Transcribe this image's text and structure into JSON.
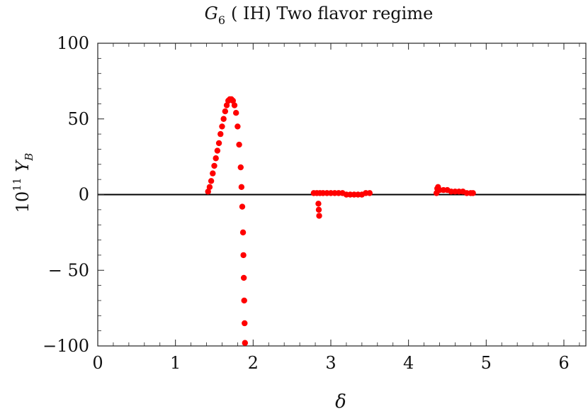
{
  "chart_data": {
    "type": "scatter",
    "title": {
      "symbol": "G",
      "subscript": "6",
      "text": "( IH) Two flavor regime"
    },
    "xlabel": "δ",
    "ylabel": {
      "prefix": "10",
      "exponent": "11",
      "symbol": "Y",
      "subscript": "B"
    },
    "xlim": [
      0,
      6.283
    ],
    "ylim": [
      -100,
      100
    ],
    "x_ticks": [
      0,
      1,
      2,
      3,
      4,
      5,
      6
    ],
    "x_tick_labels": [
      "0",
      "1",
      "2",
      "3",
      "4",
      "5",
      "6"
    ],
    "y_ticks": [
      100,
      50,
      0,
      -50,
      -100
    ],
    "y_tick_labels": [
      "100",
      "50",
      "0",
      "− 50",
      "−100"
    ],
    "grid": false,
    "zero_line": true,
    "marker_color": "#ff0000",
    "series": [
      {
        "points": [
          [
            1.42,
            2
          ],
          [
            1.44,
            5
          ],
          [
            1.46,
            9
          ],
          [
            1.48,
            14
          ],
          [
            1.5,
            19
          ],
          [
            1.52,
            24
          ],
          [
            1.54,
            29
          ],
          [
            1.56,
            34
          ],
          [
            1.58,
            40
          ],
          [
            1.6,
            45
          ],
          [
            1.62,
            50
          ],
          [
            1.64,
            55
          ],
          [
            1.66,
            59
          ],
          [
            1.68,
            62
          ],
          [
            1.7,
            63
          ],
          [
            1.72,
            63
          ],
          [
            1.74,
            62
          ],
          [
            1.76,
            59
          ],
          [
            1.78,
            54
          ],
          [
            1.8,
            45
          ],
          [
            1.82,
            33
          ],
          [
            1.84,
            18
          ],
          [
            1.85,
            5
          ],
          [
            1.86,
            -8
          ],
          [
            1.87,
            -25
          ],
          [
            1.875,
            -40
          ],
          [
            1.88,
            -55
          ],
          [
            1.885,
            -70
          ],
          [
            1.89,
            -85
          ],
          [
            1.895,
            -98
          ],
          [
            2.78,
            1
          ],
          [
            2.82,
            1
          ],
          [
            2.84,
            -6
          ],
          [
            2.845,
            -10
          ],
          [
            2.85,
            -14
          ],
          [
            2.86,
            1
          ],
          [
            2.9,
            1
          ],
          [
            2.95,
            1
          ],
          [
            3.0,
            1
          ],
          [
            3.05,
            1
          ],
          [
            3.1,
            1
          ],
          [
            3.15,
            1
          ],
          [
            3.2,
            0
          ],
          [
            3.25,
            0
          ],
          [
            3.3,
            0
          ],
          [
            3.35,
            0
          ],
          [
            3.4,
            0
          ],
          [
            3.45,
            1
          ],
          [
            3.5,
            1
          ],
          [
            4.36,
            1
          ],
          [
            4.37,
            4
          ],
          [
            4.38,
            5
          ],
          [
            4.4,
            3
          ],
          [
            4.45,
            3
          ],
          [
            4.5,
            3
          ],
          [
            4.55,
            2
          ],
          [
            4.6,
            2
          ],
          [
            4.65,
            2
          ],
          [
            4.7,
            2
          ],
          [
            4.75,
            1
          ],
          [
            4.8,
            1
          ],
          [
            4.83,
            1
          ]
        ]
      }
    ]
  }
}
